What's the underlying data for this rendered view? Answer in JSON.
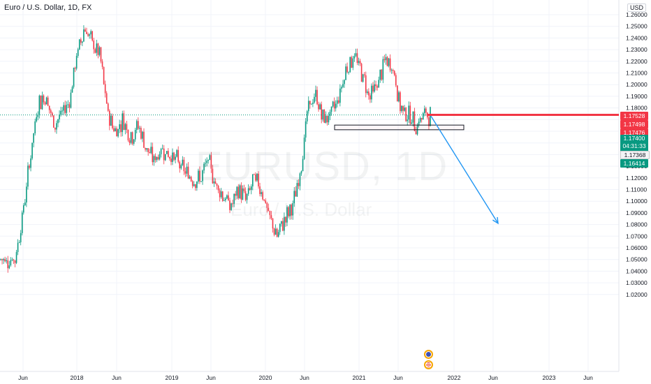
{
  "header": {
    "title": "Euro / U.S. Dollar, 1D, FX",
    "currency": "USD"
  },
  "watermark": {
    "symbol": "EURUSD, 1D",
    "name": "Euro / U.S. Dollar"
  },
  "price_tags": {
    "ask": "1.17528",
    "high": "1.17498",
    "level": "1.17476",
    "current": "1.17400",
    "countdown": "04:31:33",
    "bid": "1.17368",
    "zone": "1.16414"
  },
  "colors": {
    "up": "#089981",
    "down": "#f23645",
    "arrow": "#2196f3",
    "resistance": "#f23645",
    "zone_border": "#131722"
  },
  "chart_data": {
    "type": "candlestick",
    "title": "Euro / U.S. Dollar, 1D, FX",
    "ylim": [
      1.015,
      1.262
    ],
    "y_ticks": [
      "1.26000",
      "1.25000",
      "1.24000",
      "1.23000",
      "1.22000",
      "1.21000",
      "1.20000",
      "1.19000",
      "1.18000",
      "1.17000",
      "1.16000",
      "1.15000",
      "1.14000",
      "1.13000",
      "1.12000",
      "1.11000",
      "1.10000",
      "1.09000",
      "1.08000",
      "1.07000",
      "1.06000",
      "1.05000",
      "1.04000",
      "1.03000",
      "1.02000"
    ],
    "x_ticks": [
      "Jun",
      "2018",
      "Jun",
      "2019",
      "Jun",
      "2020",
      "Jun",
      "2021",
      "Jun",
      "2022",
      "Jun",
      "2023",
      "Jun"
    ],
    "price_path": [
      [
        "2017-05",
        1.05
      ],
      [
        "2017-06",
        1.09
      ],
      [
        "2017-07",
        1.14
      ],
      [
        "2017-08",
        1.185
      ],
      [
        "2017-09",
        1.19
      ],
      [
        "2017-10",
        1.165
      ],
      [
        "2017-11",
        1.175
      ],
      [
        "2017-12",
        1.185
      ],
      [
        "2018-01",
        1.225
      ],
      [
        "2018-02",
        1.25
      ],
      [
        "2018-03",
        1.235
      ],
      [
        "2018-04",
        1.225
      ],
      [
        "2018-05",
        1.175
      ],
      [
        "2018-06",
        1.16
      ],
      [
        "2018-07",
        1.17
      ],
      [
        "2018-08",
        1.155
      ],
      [
        "2018-09",
        1.165
      ],
      [
        "2018-10",
        1.145
      ],
      [
        "2018-11",
        1.135
      ],
      [
        "2018-12",
        1.145
      ],
      [
        "2019-01",
        1.14
      ],
      [
        "2019-02",
        1.135
      ],
      [
        "2019-03",
        1.125
      ],
      [
        "2019-04",
        1.12
      ],
      [
        "2019-05",
        1.118
      ],
      [
        "2019-06",
        1.135
      ],
      [
        "2019-07",
        1.115
      ],
      [
        "2019-08",
        1.105
      ],
      [
        "2019-09",
        1.095
      ],
      [
        "2019-10",
        1.11
      ],
      [
        "2019-11",
        1.102
      ],
      [
        "2019-12",
        1.12
      ],
      [
        "2020-01",
        1.11
      ],
      [
        "2020-02",
        1.085
      ],
      [
        "2020-03",
        1.07
      ],
      [
        "2020-04",
        1.085
      ],
      [
        "2020-05",
        1.095
      ],
      [
        "2020-06",
        1.125
      ],
      [
        "2020-07",
        1.18
      ],
      [
        "2020-08",
        1.19
      ],
      [
        "2020-09",
        1.17
      ],
      [
        "2020-10",
        1.175
      ],
      [
        "2020-11",
        1.19
      ],
      [
        "2020-12",
        1.215
      ],
      [
        "2021-01",
        1.225
      ],
      [
        "2021-02",
        1.21
      ],
      [
        "2021-03",
        1.19
      ],
      [
        "2021-04",
        1.2
      ],
      [
        "2021-05",
        1.22
      ],
      [
        "2021-06",
        1.215
      ],
      [
        "2021-07",
        1.18
      ],
      [
        "2021-08",
        1.175
      ],
      [
        "2021-09",
        1.165
      ],
      [
        "2021-10",
        1.174
      ]
    ],
    "annotations": [
      {
        "type": "horizontal_line",
        "price": 1.1741,
        "color": "#f23645"
      },
      {
        "type": "rectangle",
        "price_top": 1.1653,
        "price_bottom": 1.1613
      },
      {
        "type": "arrow",
        "from": [
          "2021-10",
          1.173
        ],
        "to": [
          "2022-06",
          1.081
        ],
        "color": "#2196f3"
      }
    ],
    "grid": true,
    "legend": "none"
  }
}
